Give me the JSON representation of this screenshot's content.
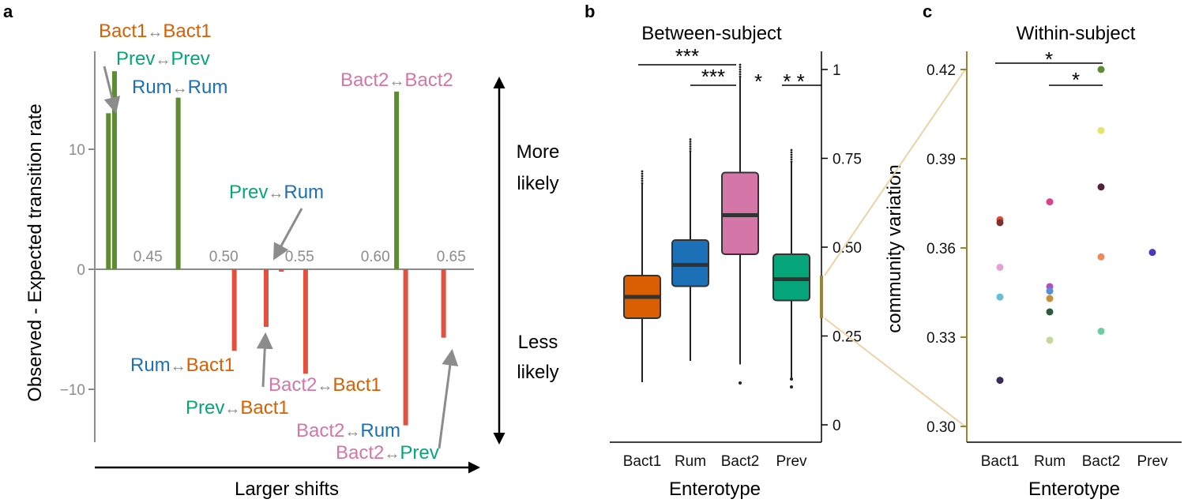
{
  "colors": {
    "bact1": "#D95F02",
    "rum": "#1B70B8",
    "bact2": "#D476A8",
    "prev": "#07A57A",
    "positive": "#5E8C31",
    "negative": "#E3513E",
    "axis_grey": "#8C8C8C",
    "zoom_line": "#EDD2A7",
    "inset_axis": "#9A8532"
  },
  "chart_data": [
    {
      "panel": "a",
      "type": "bar",
      "ylabel": "Observed - Expected transition rate",
      "xlabel": "Larger shifts",
      "x_ticks": [
        0.45,
        0.5,
        0.55,
        0.6,
        0.65
      ],
      "x_tick_labels": [
        "0.45",
        "0.50",
        "0.55",
        "0.60",
        "0.65"
      ],
      "y_ticks": [
        -10,
        0,
        10
      ],
      "y_tick_labels": [
        "−10",
        "0",
        "10"
      ],
      "xlim": [
        0.415,
        0.665
      ],
      "ylim": [
        -14.5,
        18
      ],
      "annotation_top": "More likely",
      "annotation_top_lines": [
        "More",
        "likely"
      ],
      "annotation_bottom": "Less likely",
      "annotation_bottom_lines": [
        "Less",
        "likely"
      ],
      "bars": [
        {
          "x": 0.424,
          "value": 13.0,
          "from": "Bact1",
          "to": "Bact1"
        },
        {
          "x": 0.428,
          "value": 16.5,
          "from": "Prev",
          "to": "Prev"
        },
        {
          "x": 0.47,
          "value": 14.3,
          "from": "Rum",
          "to": "Rum"
        },
        {
          "x": 0.507,
          "value": -6.8,
          "from": "Rum",
          "to": "Bact1"
        },
        {
          "x": 0.528,
          "value": -4.8,
          "from": "Prev",
          "to": "Bact1"
        },
        {
          "x": 0.538,
          "value": -0.2,
          "from": "Prev",
          "to": "Rum"
        },
        {
          "x": 0.554,
          "value": -8.7,
          "from": "Bact2",
          "to": "Bact1"
        },
        {
          "x": 0.614,
          "value": 14.8,
          "from": "Bact2",
          "to": "Bact2"
        },
        {
          "x": 0.62,
          "value": -13.0,
          "from": "Bact2",
          "to": "Rum"
        },
        {
          "x": 0.645,
          "value": -5.7,
          "from": "Bact2",
          "to": "Prev"
        }
      ],
      "arrow_glyph": "↔"
    },
    {
      "panel": "b",
      "type": "box",
      "title": "Between-subject",
      "xlabel": "Enterotype",
      "ylabel": "community variation",
      "categories": [
        "Bact1",
        "Rum",
        "Bact2",
        "Prev"
      ],
      "ylim": [
        0.0,
        1.0
      ],
      "y_ticks": [
        0,
        0.25,
        0.5,
        0.75,
        1
      ],
      "y_tick_labels": [
        "0",
        "0.25",
        "0.50",
        "0.75",
        "1"
      ],
      "boxes": [
        {
          "q1": 0.3,
          "median": 0.36,
          "q3": 0.42,
          "whisker_low": 0.12,
          "whisker_high": 0.68
        },
        {
          "q1": 0.39,
          "median": 0.45,
          "q3": 0.52,
          "whisker_low": 0.18,
          "whisker_high": 0.77
        },
        {
          "q1": 0.48,
          "median": 0.59,
          "q3": 0.71,
          "whisker_low": 0.17,
          "whisker_high": 0.98
        },
        {
          "q1": 0.35,
          "median": 0.41,
          "q3": 0.48,
          "whisker_low": 0.13,
          "whisker_high": 0.74
        }
      ],
      "significance": [
        {
          "from": 0,
          "to": 2,
          "label": "***",
          "y": 1.02
        },
        {
          "from": 1,
          "to": 2,
          "label": "***",
          "y": 0.96
        },
        {
          "from": 3,
          "to": 3,
          "label": "*",
          "y": 0.96
        },
        {
          "from": 3,
          "to": 4,
          "label": "* *",
          "y": 0.96
        }
      ]
    },
    {
      "panel": "c",
      "type": "scatter",
      "title": "Within-subject",
      "xlabel": "Enterotype",
      "categories": [
        "Bact1",
        "Rum",
        "Bact2",
        "Prev"
      ],
      "ylim": [
        0.3,
        0.42
      ],
      "y_ticks": [
        0.3,
        0.33,
        0.36,
        0.39,
        0.42
      ],
      "y_tick_labels": [
        "0.30",
        "0.33",
        "0.36",
        "0.39",
        "0.42"
      ],
      "points": [
        {
          "cat": 0,
          "y": 0.3695,
          "color": "#E34A33"
        },
        {
          "cat": 0,
          "y": 0.3685,
          "color": "#7F2F2F"
        },
        {
          "cat": 0,
          "y": 0.3535,
          "color": "#E6A0D8"
        },
        {
          "cat": 0,
          "y": 0.3435,
          "color": "#66BFD0"
        },
        {
          "cat": 0,
          "y": 0.3155,
          "color": "#3A2A5C"
        },
        {
          "cat": 1,
          "y": 0.3755,
          "color": "#D9448C"
        },
        {
          "cat": 1,
          "y": 0.347,
          "color": "#B04FC4"
        },
        {
          "cat": 1,
          "y": 0.3455,
          "color": "#5A8FD6"
        },
        {
          "cat": 1,
          "y": 0.343,
          "color": "#C78F3A"
        },
        {
          "cat": 1,
          "y": 0.3385,
          "color": "#2F5A3A"
        },
        {
          "cat": 1,
          "y": 0.329,
          "color": "#C5D79A"
        },
        {
          "cat": 2,
          "y": 0.42,
          "color": "#5E8C31"
        },
        {
          "cat": 2,
          "y": 0.3995,
          "color": "#E3E56A"
        },
        {
          "cat": 2,
          "y": 0.3805,
          "color": "#5A1F3F"
        },
        {
          "cat": 2,
          "y": 0.357,
          "color": "#F08A5A"
        },
        {
          "cat": 2,
          "y": 0.332,
          "color": "#6ACFA0"
        },
        {
          "cat": 3,
          "y": 0.3585,
          "color": "#4A38C0"
        }
      ],
      "significance": [
        {
          "from": 0,
          "to": 2,
          "label": "*"
        },
        {
          "from": 1,
          "to": 2,
          "label": "*"
        }
      ]
    }
  ],
  "panel_labels": {
    "a": "a",
    "b": "b",
    "c": "c"
  }
}
